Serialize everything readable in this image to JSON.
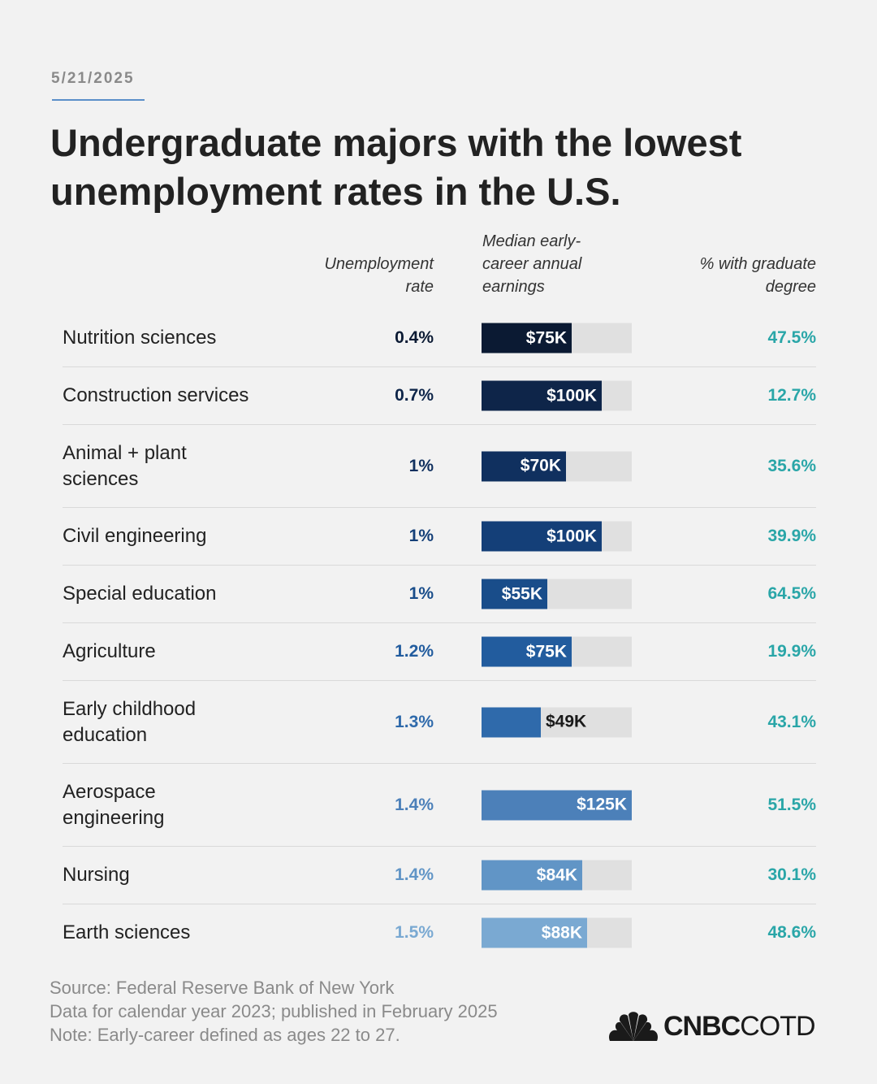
{
  "date": "5/21/2025",
  "title": "Undergraduate majors with the lowest unemployment rates in the U.S.",
  "columns": {
    "unemployment": [
      "Unemployment",
      "rate"
    ],
    "earnings": [
      "Median early-",
      "career annual",
      "earnings"
    ],
    "graduate": [
      "% with graduate",
      "degree"
    ]
  },
  "colors": {
    "graduate_text": "#2aa6a8",
    "bar_track": "#e0e0e0"
  },
  "chart_data": {
    "type": "table",
    "title": "Undergraduate majors with the lowest unemployment rates in the U.S.",
    "earnings_max": 125000,
    "rows": [
      {
        "major": [
          "Nutrition sciences"
        ],
        "unemployment": "0.4%",
        "unemployment_value": 0.4,
        "earnings": "$75K",
        "earnings_value": 75000,
        "graduate": "47.5%",
        "graduate_value": 47.5,
        "color": "#0b1a33",
        "unemp_color": "#0b1a33"
      },
      {
        "major": [
          "Construction services"
        ],
        "unemployment": "0.7%",
        "unemployment_value": 0.7,
        "earnings": "$100K",
        "earnings_value": 100000,
        "graduate": "12.7%",
        "graduate_value": 12.7,
        "color": "#0e2549",
        "unemp_color": "#0e2549"
      },
      {
        "major": [
          "Animal + plant",
          "sciences"
        ],
        "unemployment": "1%",
        "unemployment_value": 1.0,
        "earnings": "$70K",
        "earnings_value": 70000,
        "graduate": "35.6%",
        "graduate_value": 35.6,
        "color": "#10305f",
        "unemp_color": "#10305f"
      },
      {
        "major": [
          "Civil engineering"
        ],
        "unemployment": "1%",
        "unemployment_value": 1.0,
        "earnings": "$100K",
        "earnings_value": 100000,
        "graduate": "39.9%",
        "graduate_value": 39.9,
        "color": "#143f78",
        "unemp_color": "#143f78"
      },
      {
        "major": [
          "Special education"
        ],
        "unemployment": "1%",
        "unemployment_value": 1.0,
        "earnings": "$55K",
        "earnings_value": 55000,
        "graduate": "64.5%",
        "graduate_value": 64.5,
        "color": "#194d8a",
        "unemp_color": "#194d8a"
      },
      {
        "major": [
          "Agriculture"
        ],
        "unemployment": "1.2%",
        "unemployment_value": 1.2,
        "earnings": "$75K",
        "earnings_value": 75000,
        "graduate": "19.9%",
        "graduate_value": 19.9,
        "color": "#225c9e",
        "unemp_color": "#225c9e"
      },
      {
        "major": [
          "Early childhood",
          "education"
        ],
        "unemployment": "1.3%",
        "unemployment_value": 1.3,
        "earnings": "$49K",
        "earnings_value": 49000,
        "graduate": "43.1%",
        "graduate_value": 43.1,
        "color": "#2f6aab",
        "unemp_color": "#2f6aab"
      },
      {
        "major": [
          "Aerospace",
          "engineering"
        ],
        "unemployment": "1.4%",
        "unemployment_value": 1.4,
        "earnings": "$125K",
        "earnings_value": 125000,
        "graduate": "51.5%",
        "graduate_value": 51.5,
        "color": "#4c80b9",
        "unemp_color": "#4c80b9"
      },
      {
        "major": [
          "Nursing"
        ],
        "unemployment": "1.4%",
        "unemployment_value": 1.4,
        "earnings": "$84K",
        "earnings_value": 84000,
        "graduate": "30.1%",
        "graduate_value": 30.1,
        "color": "#6195c6",
        "unemp_color": "#6195c6"
      },
      {
        "major": [
          "Earth sciences"
        ],
        "unemployment": "1.5%",
        "unemployment_value": 1.5,
        "earnings": "$88K",
        "earnings_value": 88000,
        "graduate": "48.6%",
        "graduate_value": 48.6,
        "color": "#7aa9d2",
        "unemp_color": "#7aa9d2"
      }
    ]
  },
  "footer": [
    "Source: Federal Reserve Bank of New York",
    "Data for calendar year 2023; published in February 2025",
    "Note: Early-career defined as ages 22 to 27."
  ],
  "logo": {
    "bold": "CNBC",
    "light": "COTD",
    "icon": "peacock-icon"
  }
}
